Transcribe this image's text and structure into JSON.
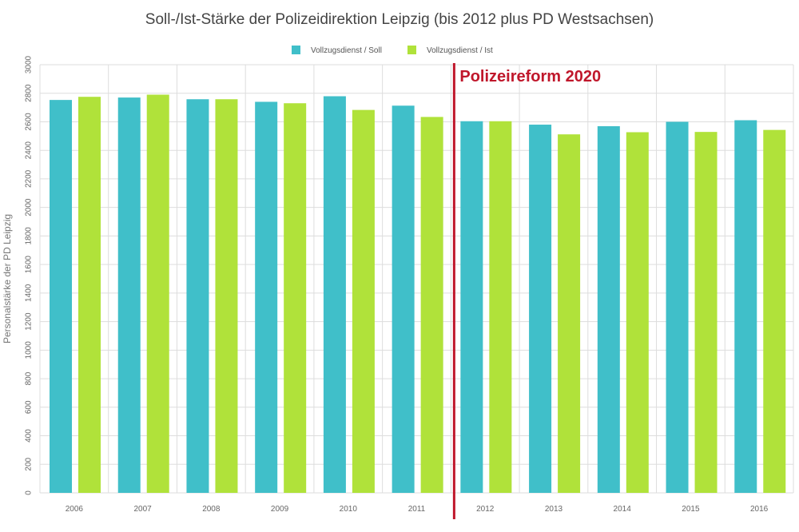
{
  "chart_data": {
    "type": "bar",
    "title": "Soll-/Ist-Stärke der Polizeidirektion Leipzig (bis 2012 plus PD Westsachsen)",
    "xlabel": "",
    "ylabel": "Personalstärke der PD Leipzig",
    "ylim": [
      0,
      3000
    ],
    "yticks": [
      0,
      200,
      400,
      600,
      800,
      1000,
      1200,
      1400,
      1600,
      1800,
      2000,
      2200,
      2400,
      2600,
      2800,
      3000
    ],
    "grid": true,
    "legend_position": "top",
    "categories": [
      "2006",
      "2007",
      "2008",
      "2009",
      "2010",
      "2011",
      "2012",
      "2013",
      "2014",
      "2015",
      "2016"
    ],
    "series": [
      {
        "name": "Vollzugsdienst / Soll",
        "color": "#40bfc9",
        "values": [
          2753,
          2770,
          2758,
          2740,
          2779,
          2713,
          2604,
          2580,
          2569,
          2600,
          2611
        ]
      },
      {
        "name": "Vollzugsdienst / Ist",
        "color": "#b0e23a",
        "values": [
          2775,
          2790,
          2758,
          2730,
          2683,
          2634,
          2604,
          2512,
          2527,
          2529,
          2543
        ]
      }
    ],
    "annotation": {
      "text": "Polizeireform 2020",
      "color": "#c0172b",
      "between": [
        "2011",
        "2012"
      ]
    }
  }
}
